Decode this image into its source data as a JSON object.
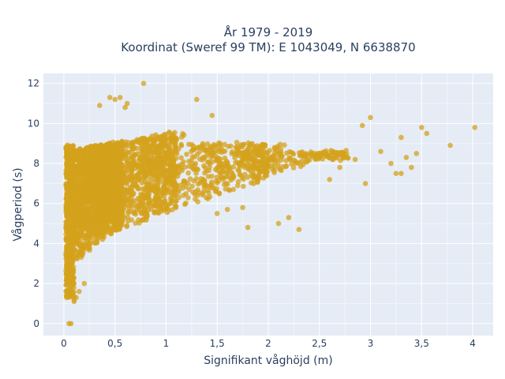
{
  "chart_data": {
    "type": "scatter",
    "title_line1": "År 1979 - 2019",
    "title_line2": "Koordinat (Sweref 99 TM): E 1043049, N 6638870",
    "xlabel": "Signifikant våghöjd (m)",
    "ylabel": "Vågperiod (s)",
    "xlim": [
      -0.2,
      4.2
    ],
    "ylim": [
      -0.6,
      12.5
    ],
    "xticks": [
      0,
      0.5,
      1,
      1.5,
      2,
      2.5,
      3,
      3.5,
      4
    ],
    "xtick_labels": [
      "0",
      "0,5",
      "1",
      "1,5",
      "2",
      "2,5",
      "3",
      "3,5",
      "4"
    ],
    "yticks": [
      0,
      2,
      4,
      6,
      8,
      10,
      12
    ],
    "ytick_labels": [
      "0",
      "2",
      "4",
      "6",
      "8",
      "10",
      "12"
    ],
    "grid": true,
    "marker_color": "#d4a21c",
    "plot_background": "#e5ecf6",
    "series": [
      {
        "x": [
          0.78,
          0.45,
          0.5,
          0.62,
          0.35,
          1.3,
          1.45,
          0.6,
          0.55,
          0.05,
          0.07,
          0.1,
          2.92,
          3.0,
          3.5,
          3.55,
          3.78,
          4.02,
          3.35,
          3.4,
          3.3,
          3.2,
          3.1,
          2.85,
          2.95,
          2.7,
          2.6,
          3.45,
          3.3,
          3.25,
          2.3,
          2.1,
          2.2,
          1.8,
          1.75,
          1.6,
          1.5,
          0.08,
          0.1,
          0.12,
          0.15,
          0.2
        ],
        "y": [
          12.0,
          11.3,
          11.2,
          11.0,
          10.9,
          11.2,
          10.4,
          10.8,
          11.3,
          0.0,
          0.0,
          1.1,
          9.9,
          10.3,
          9.8,
          9.5,
          8.9,
          9.8,
          8.3,
          7.8,
          7.5,
          8.0,
          8.6,
          8.2,
          7.0,
          7.8,
          7.2,
          8.5,
          9.3,
          7.5,
          4.7,
          5.0,
          5.3,
          4.8,
          5.8,
          5.7,
          5.5,
          1.5,
          1.2,
          1.3,
          1.6,
          2.0
        ]
      }
    ]
  }
}
